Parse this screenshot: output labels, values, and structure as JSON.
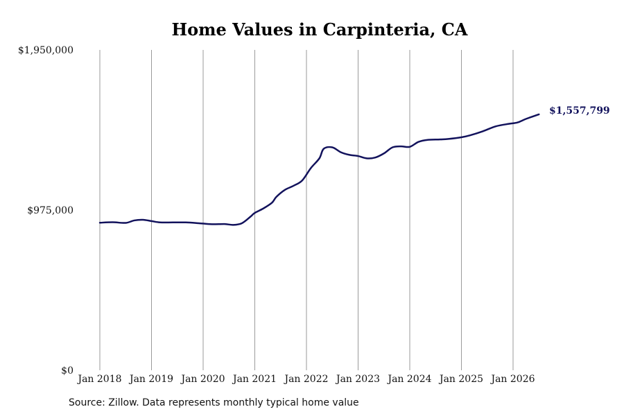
{
  "chart_data": {
    "type": "line",
    "title": "Home Values in Carpinteria, CA",
    "xlabel": "",
    "ylabel": "",
    "ylim": [
      0,
      1950000
    ],
    "y_ticks": [
      0,
      975000,
      1950000
    ],
    "y_tick_labels": [
      "$0",
      "$975,000",
      "$1,950,000"
    ],
    "x_ticks": [
      "2018-01",
      "2019-01",
      "2020-01",
      "2021-01",
      "2022-01",
      "2023-01",
      "2024-01",
      "2025-01",
      "2026-01"
    ],
    "x_tick_labels": [
      "Jan 2018",
      "Jan 2019",
      "Jan 2020",
      "Jan 2021",
      "Jan 2022",
      "Jan 2023",
      "Jan 2024",
      "Jan 2025",
      "Jan 2026"
    ],
    "grid": {
      "vertical": true,
      "horizontal": false
    },
    "end_label": "$1,557,799",
    "series": [
      {
        "color": "#12125c",
        "x": [
          "2018-01",
          "2018-04",
          "2018-07",
          "2018-09",
          "2018-11",
          "2019-01",
          "2019-03",
          "2019-06",
          "2019-09",
          "2019-12",
          "2020-03",
          "2020-06",
          "2020-08",
          "2020-10",
          "2020-12",
          "2021-01",
          "2021-03",
          "2021-05",
          "2021-06",
          "2021-08",
          "2021-10",
          "2021-12",
          "2022-02",
          "2022-04",
          "2022-05",
          "2022-07",
          "2022-09",
          "2022-11",
          "2023-01",
          "2023-03",
          "2023-05",
          "2023-07",
          "2023-09",
          "2023-11",
          "2024-01",
          "2024-03",
          "2024-05",
          "2024-08",
          "2024-10",
          "2025-01",
          "2025-03",
          "2025-06",
          "2025-09",
          "2025-12",
          "2026-02",
          "2026-04",
          "2026-07"
        ],
        "values": [
          898000,
          901000,
          897000,
          912000,
          916000,
          908000,
          900000,
          900000,
          900000,
          895000,
          889000,
          890000,
          885000,
          895000,
          935000,
          958000,
          985000,
          1020000,
          1055000,
          1098000,
          1123000,
          1155000,
          1230000,
          1290000,
          1348000,
          1357000,
          1327000,
          1311000,
          1304000,
          1290000,
          1295000,
          1320000,
          1357000,
          1363000,
          1360000,
          1390000,
          1402000,
          1405000,
          1408000,
          1418000,
          1430000,
          1455000,
          1485000,
          1500000,
          1508000,
          1530000,
          1557799
        ]
      }
    ]
  },
  "source_note": "Source: Zillow. Data represents monthly typical home value"
}
